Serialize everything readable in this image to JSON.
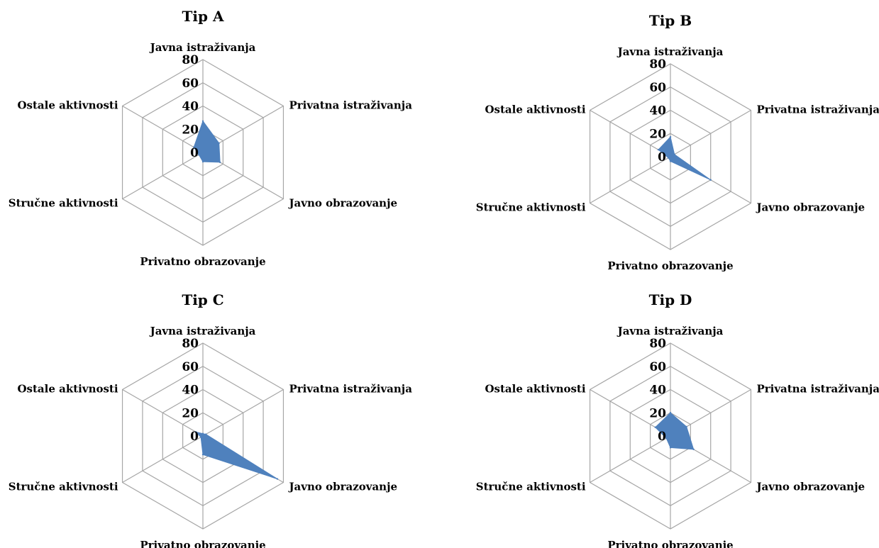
{
  "chart_data": [
    {
      "type": "radar",
      "title": "Tip A",
      "categories": [
        "Javna istraživanja",
        "Privatna istraživanja",
        "Javno obrazovanje",
        "Privatno obrazovanje",
        "Stručne aktivnosti",
        "Ostale aktivnosti"
      ],
      "values": [
        27,
        16,
        17,
        8,
        4,
        9
      ],
      "rlim": [
        0,
        80
      ],
      "ticks": [
        0,
        20,
        40,
        60,
        80
      ],
      "grid": true,
      "color": "#4f81bd"
    },
    {
      "type": "radar",
      "title": "Tip B",
      "categories": [
        "Javna istraživanja",
        "Privatna istraživanja",
        "Javno obrazovanje",
        "Privatno obrazovanje",
        "Stručne aktivnosti",
        "Ostale aktivnosti"
      ],
      "values": [
        17,
        4,
        40,
        4,
        2,
        12
      ],
      "rlim": [
        0,
        80
      ],
      "ticks": [
        0,
        20,
        40,
        60,
        80
      ],
      "grid": true,
      "color": "#4f81bd"
    },
    {
      "type": "radar",
      "title": "Tip C",
      "categories": [
        "Javna istraživanja",
        "Privatna istraživanja",
        "Javno obrazovanje",
        "Privatno obrazovanje",
        "Stručne aktivnosti",
        "Ostale aktivnosti"
      ],
      "values": [
        2,
        3,
        74,
        16,
        2,
        7
      ],
      "rlim": [
        0,
        80
      ],
      "ticks": [
        0,
        20,
        40,
        60,
        80
      ],
      "grid": true,
      "color": "#4f81bd"
    },
    {
      "type": "radar",
      "title": "Tip D",
      "categories": [
        "Javna istraživanja",
        "Privatna istraživanja",
        "Javno obrazovanje",
        "Privatno obrazovanje",
        "Stručne aktivnosti",
        "Ostale aktivnosti"
      ],
      "values": [
        20,
        16,
        23,
        10,
        4,
        15
      ],
      "rlim": [
        0,
        80
      ],
      "ticks": [
        0,
        20,
        40,
        60,
        80
      ],
      "grid": true,
      "color": "#4f81bd"
    }
  ]
}
